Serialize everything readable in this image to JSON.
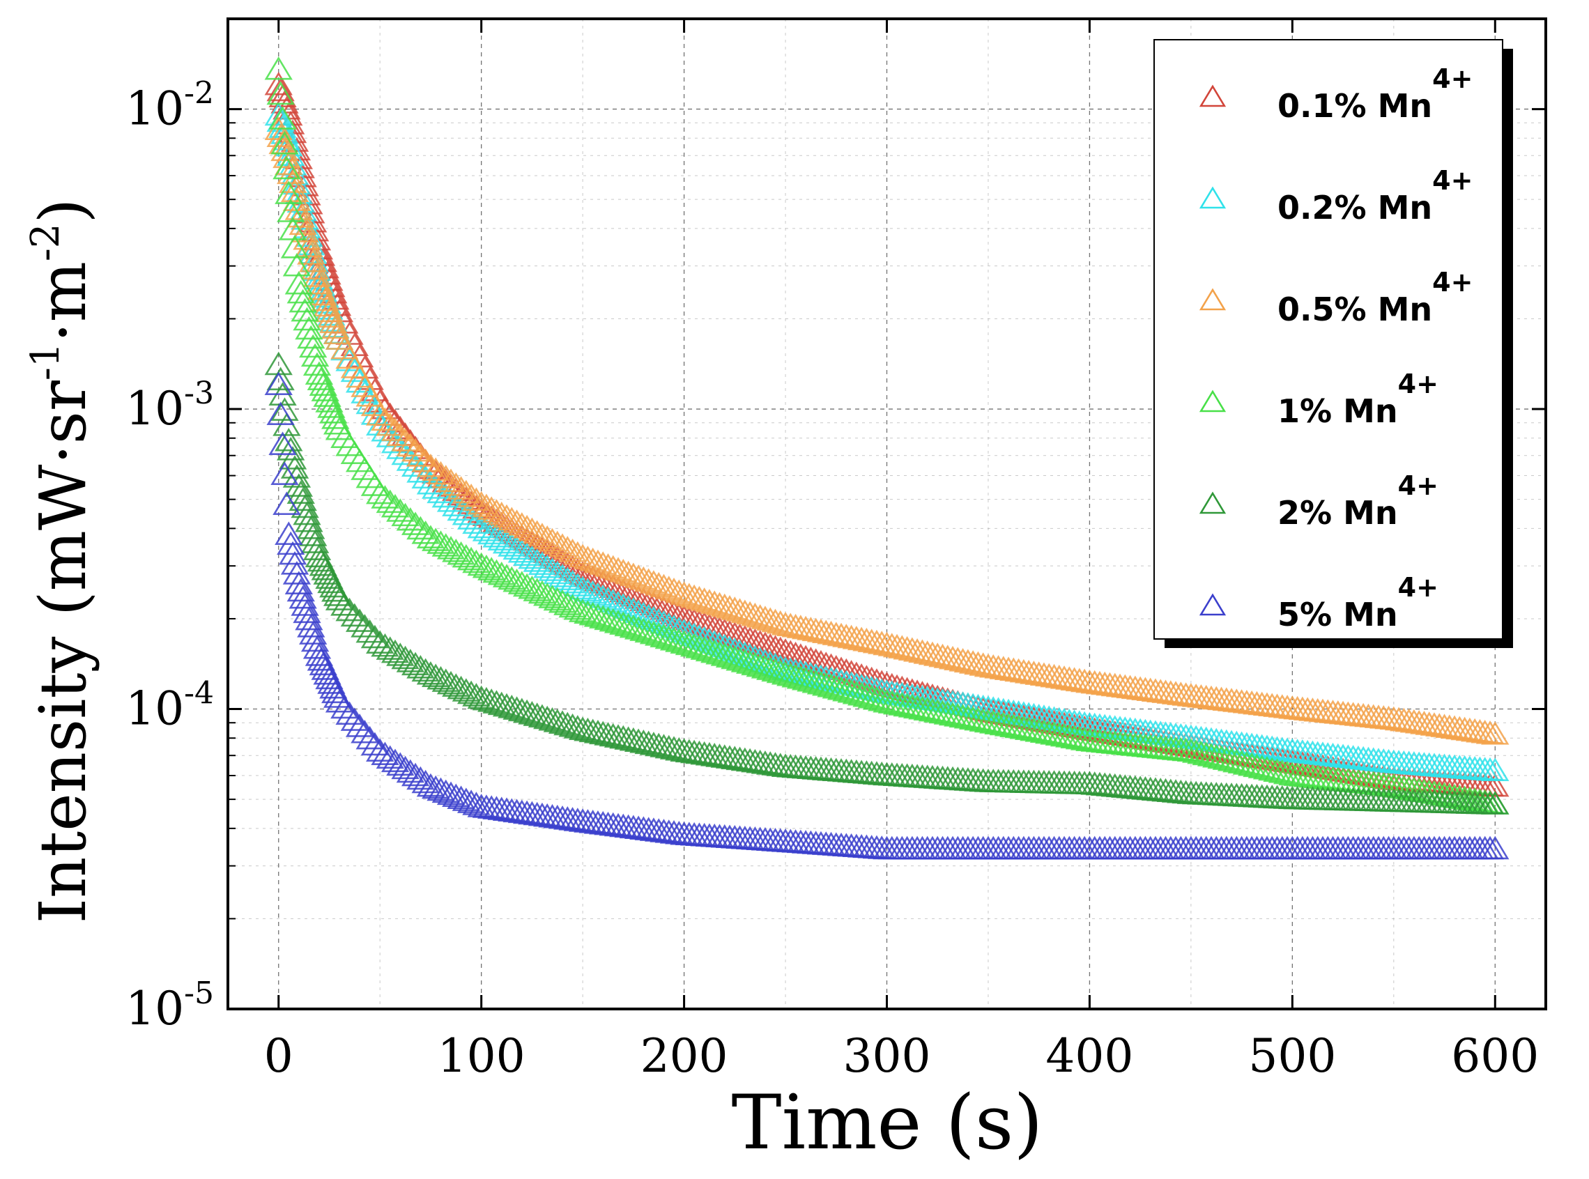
{
  "chart_data": {
    "type": "scatter",
    "title": "",
    "xlabel": "Time (s)",
    "ylabel": "Intensity (mW·sr-1·m-2)",
    "ylabel_parts": {
      "prefix": "Intensity (mW·sr",
      "sup1": "-1",
      "mid": "·m",
      "sup2": "-2",
      "suffix": ")"
    },
    "xlim": [
      -25,
      625
    ],
    "ylim": [
      1e-05,
      0.02
    ],
    "yscale": "log",
    "grid": true,
    "legend_position": "top-right",
    "x_ticks": [
      0,
      100,
      200,
      300,
      400,
      500,
      600
    ],
    "x_tick_labels": [
      "0",
      "100",
      "200",
      "300",
      "400",
      "500",
      "600"
    ],
    "y_ticks": [
      1e-05,
      0.0001,
      0.001,
      0.01
    ],
    "y_tick_labels": [
      {
        "base": "10",
        "exp": "-5"
      },
      {
        "base": "10",
        "exp": "-4"
      },
      {
        "base": "10",
        "exp": "-3"
      },
      {
        "base": "10",
        "exp": "-2"
      }
    ],
    "marker": "open-triangle",
    "series": [
      {
        "name": "0.1% Mn",
        "sup": "4+",
        "color": "#d2453a",
        "x": [
          0,
          5,
          10,
          20,
          30,
          50,
          75,
          100,
          150,
          200,
          250,
          300,
          350,
          400,
          450,
          500,
          550,
          600
        ],
        "y": [
          0.012,
          0.0095,
          0.0068,
          0.0034,
          0.0021,
          0.00105,
          0.00063,
          0.00045,
          0.00028,
          0.0002,
          0.000155,
          0.00012,
          9.8e-05,
          8.5e-05,
          7.5e-05,
          6.6e-05,
          5.8e-05,
          5.5e-05
        ]
      },
      {
        "name": "0.2% Mn",
        "sup": "4+",
        "color": "#2fe2ea",
        "x": [
          0,
          5,
          10,
          20,
          30,
          50,
          75,
          100,
          150,
          200,
          250,
          300,
          350,
          400,
          450,
          500,
          550,
          600
        ],
        "y": [
          0.0095,
          0.0075,
          0.0052,
          0.0027,
          0.0017,
          0.00088,
          0.00056,
          0.0004,
          0.00025,
          0.00018,
          0.000135,
          0.000113,
          0.0001,
          8.8e-05,
          8e-05,
          7.2e-05,
          6.6e-05,
          6.2e-05
        ]
      },
      {
        "name": "0.5% Mn",
        "sup": "4+",
        "color": "#f3a24a",
        "x": [
          0,
          5,
          10,
          20,
          30,
          50,
          75,
          100,
          150,
          200,
          250,
          300,
          350,
          400,
          450,
          500,
          550,
          600
        ],
        "y": [
          0.0085,
          0.0065,
          0.0046,
          0.0026,
          0.0017,
          0.00095,
          0.00064,
          0.00048,
          0.00032,
          0.00024,
          0.00019,
          0.000163,
          0.000138,
          0.000122,
          0.00011,
          0.0001,
          9.2e-05,
          8.2e-05
        ]
      },
      {
        "name": "1% Mn",
        "sup": "4+",
        "color": "#48e048",
        "x": [
          0,
          5,
          10,
          20,
          30,
          50,
          75,
          100,
          150,
          200,
          250,
          300,
          350,
          400,
          450,
          500,
          550,
          600
        ],
        "y": [
          0.0135,
          0.0052,
          0.0026,
          0.0013,
          0.00085,
          0.00052,
          0.00037,
          0.0003,
          0.00021,
          0.000165,
          0.00013,
          0.000105,
          9e-05,
          7.8e-05,
          7.2e-05,
          6e-05,
          5.5e-05,
          4.8e-05
        ]
      },
      {
        "name": "2% Mn",
        "sup": "4+",
        "color": "#2f9838",
        "x": [
          0,
          5,
          10,
          20,
          30,
          50,
          75,
          100,
          150,
          200,
          250,
          300,
          350,
          400,
          450,
          500,
          550,
          600
        ],
        "y": [
          0.0014,
          0.00078,
          0.00055,
          0.00032,
          0.00023,
          0.000165,
          0.00013,
          0.000108,
          8.5e-05,
          7.2e-05,
          6.4e-05,
          6e-05,
          5.7e-05,
          5.6e-05,
          5.2e-05,
          5e-05,
          4.9e-05,
          4.8e-05
        ]
      },
      {
        "name": "5% Mn",
        "sup": "4+",
        "color": "#3b3fcc",
        "x": [
          0,
          5,
          10,
          20,
          30,
          50,
          75,
          100,
          150,
          200,
          250,
          300,
          350,
          400,
          450,
          500,
          550,
          600
        ],
        "y": [
          0.0012,
          0.00038,
          0.00026,
          0.00015,
          0.000105,
          7.2e-05,
          5.5e-05,
          4.7e-05,
          4.2e-05,
          3.8e-05,
          3.6e-05,
          3.4e-05,
          3.4e-05,
          3.4e-05,
          3.4e-05,
          3.4e-05,
          3.4e-05,
          3.4e-05
        ]
      }
    ]
  }
}
